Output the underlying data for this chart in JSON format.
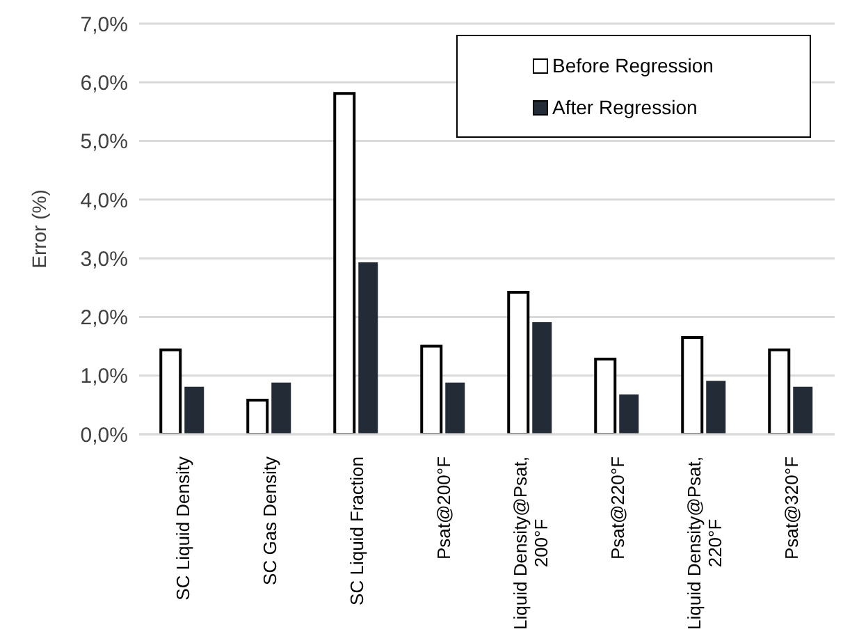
{
  "chart_data": {
    "type": "bar",
    "ylabel": "Error (%)",
    "categories": [
      "SC Liquid Density",
      "SC Gas Density",
      "SC Liquid Fraction",
      "Psat@200°F",
      "Liquid Density@Psat, 200°F",
      "Psat@220°F",
      "Liquid Density@Psat, 220°F",
      "Psat@320°F"
    ],
    "series": [
      {
        "name": "Before Regression",
        "color": "#ffffff",
        "values": [
          1.44,
          0.58,
          5.81,
          1.5,
          2.42,
          1.28,
          1.65,
          1.44
        ]
      },
      {
        "name": "After Regression",
        "color": "#232b36",
        "values": [
          0.81,
          0.88,
          2.93,
          0.88,
          1.91,
          0.68,
          0.91,
          0.81
        ]
      }
    ],
    "ylim": [
      0,
      7
    ],
    "yticks": [
      {
        "value": 0,
        "label": "0,0%"
      },
      {
        "value": 1,
        "label": "1,0%"
      },
      {
        "value": 2,
        "label": "2,0%"
      },
      {
        "value": 3,
        "label": "3,0%"
      },
      {
        "value": 4,
        "label": "4,0%"
      },
      {
        "value": 5,
        "label": "5,0%"
      },
      {
        "value": 6,
        "label": "6,0%"
      },
      {
        "value": 7,
        "label": "7,0%"
      }
    ],
    "grid": "y",
    "legend": "top right"
  }
}
